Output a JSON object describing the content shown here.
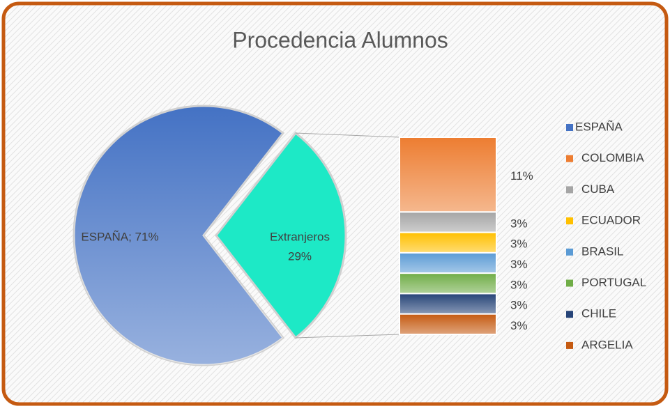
{
  "chart_data": {
    "type": "pie",
    "title": "Procedencia Alumnos",
    "categories": [
      "ESPAÑA",
      "COLOMBIA",
      "CUBA",
      "ECUADOR",
      "BRASIL",
      "PORTUGAL",
      "CHILE",
      "ARGELIA"
    ],
    "values": [
      71,
      11,
      3,
      3,
      3,
      3,
      3,
      3
    ],
    "value_labels": [
      "ESPAÑA; 71%",
      "11%",
      "3%",
      "3%",
      "3%",
      "3%",
      "3%",
      "3%"
    ],
    "colors": [
      "#4472c4",
      "#ed7d31",
      "#a5a5a5",
      "#ffc000",
      "#5b9bd5",
      "#70ad47",
      "#264478",
      "#c55a11"
    ],
    "other": {
      "name": "Extranjeros",
      "value": 29,
      "value_label": "29%",
      "color": "#1de9c6"
    }
  }
}
